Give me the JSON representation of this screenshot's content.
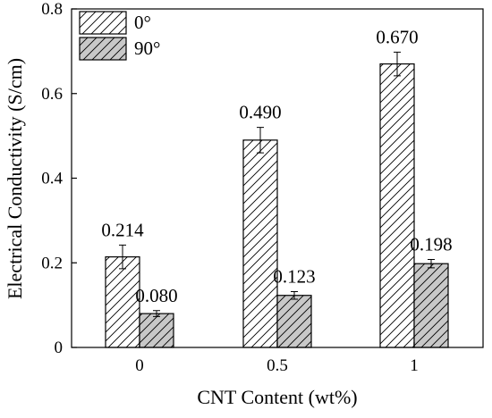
{
  "chart_data": {
    "type": "bar",
    "xlabel": "CNT Content  (wt%)",
    "ylabel": "Electrical Conductivity (S/cm)",
    "categories": [
      "0",
      "0.5",
      "1"
    ],
    "ylim": [
      0,
      0.8
    ],
    "yticks": [
      0,
      0.2,
      0.4,
      0.6,
      0.8
    ],
    "ytick_labels": [
      "0",
      "0.2",
      "0.4",
      "0.6",
      "0.8"
    ],
    "grid": false,
    "legend_position": "top-left",
    "series": [
      {
        "name": "0°",
        "values": [
          0.214,
          0.49,
          0.67
        ],
        "errors": [
          0.028,
          0.03,
          0.028
        ],
        "data_labels": [
          "0.214",
          "0.490",
          "0.670"
        ],
        "fill": "#ffffff",
        "hatch": "diagonal"
      },
      {
        "name": "90°",
        "values": [
          0.08,
          0.123,
          0.198
        ],
        "errors": [
          0.007,
          0.009,
          0.01
        ],
        "data_labels": [
          "0.080",
          "0.123",
          "0.198"
        ],
        "fill": "#c8c8c8",
        "hatch": "diagonal"
      }
    ]
  }
}
